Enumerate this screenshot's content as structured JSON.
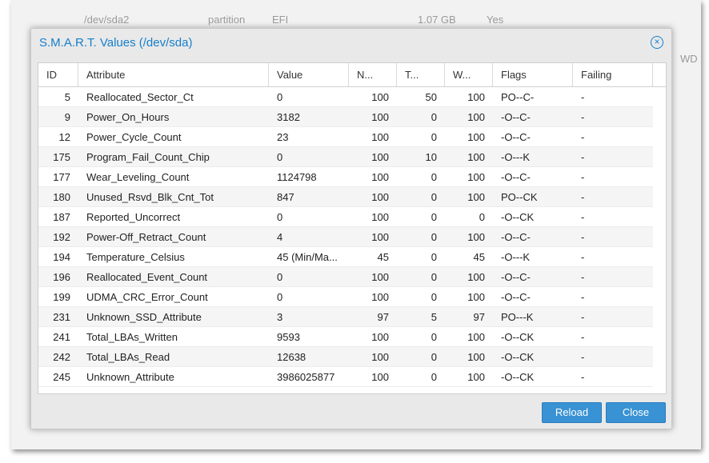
{
  "background": {
    "row": [
      "/dev/sda2",
      "partition",
      "EFI",
      "1.07 GB",
      "Yes"
    ],
    "side_text": "WD"
  },
  "dialog": {
    "title": "S.M.A.R.T. Values (/dev/sda)",
    "table": {
      "columns": [
        "ID",
        "Attribute",
        "Value",
        "N...",
        "T...",
        "W...",
        "Flags",
        "Failing"
      ],
      "rows": [
        [
          "5",
          "Reallocated_Sector_Ct",
          "0",
          "100",
          "50",
          "100",
          "PO--C-",
          "-"
        ],
        [
          "9",
          "Power_On_Hours",
          "3182",
          "100",
          "0",
          "100",
          "-O--C-",
          "-"
        ],
        [
          "12",
          "Power_Cycle_Count",
          "23",
          "100",
          "0",
          "100",
          "-O--C-",
          "-"
        ],
        [
          "175",
          "Program_Fail_Count_Chip",
          "0",
          "100",
          "10",
          "100",
          "-O---K",
          "-"
        ],
        [
          "177",
          "Wear_Leveling_Count",
          "1124798",
          "100",
          "0",
          "100",
          "-O--C-",
          "-"
        ],
        [
          "180",
          "Unused_Rsvd_Blk_Cnt_Tot",
          "847",
          "100",
          "0",
          "100",
          "PO--CK",
          "-"
        ],
        [
          "187",
          "Reported_Uncorrect",
          "0",
          "100",
          "0",
          "0",
          "-O--CK",
          "-"
        ],
        [
          "192",
          "Power-Off_Retract_Count",
          "4",
          "100",
          "0",
          "100",
          "-O--C-",
          "-"
        ],
        [
          "194",
          "Temperature_Celsius",
          "45 (Min/Ma...",
          "45",
          "0",
          "45",
          "-O---K",
          "-"
        ],
        [
          "196",
          "Reallocated_Event_Count",
          "0",
          "100",
          "0",
          "100",
          "-O--C-",
          "-"
        ],
        [
          "199",
          "UDMA_CRC_Error_Count",
          "0",
          "100",
          "0",
          "100",
          "-O--C-",
          "-"
        ],
        [
          "231",
          "Unknown_SSD_Attribute",
          "3",
          "97",
          "5",
          "97",
          "PO---K",
          "-"
        ],
        [
          "241",
          "Total_LBAs_Written",
          "9593",
          "100",
          "0",
          "100",
          "-O--CK",
          "-"
        ],
        [
          "242",
          "Total_LBAs_Read",
          "12638",
          "100",
          "0",
          "100",
          "-O--CK",
          "-"
        ],
        [
          "245",
          "Unknown_Attribute",
          "3986025877",
          "100",
          "0",
          "100",
          "-O--CK",
          "-"
        ]
      ]
    },
    "buttons": [
      "Reload",
      "Close"
    ]
  }
}
